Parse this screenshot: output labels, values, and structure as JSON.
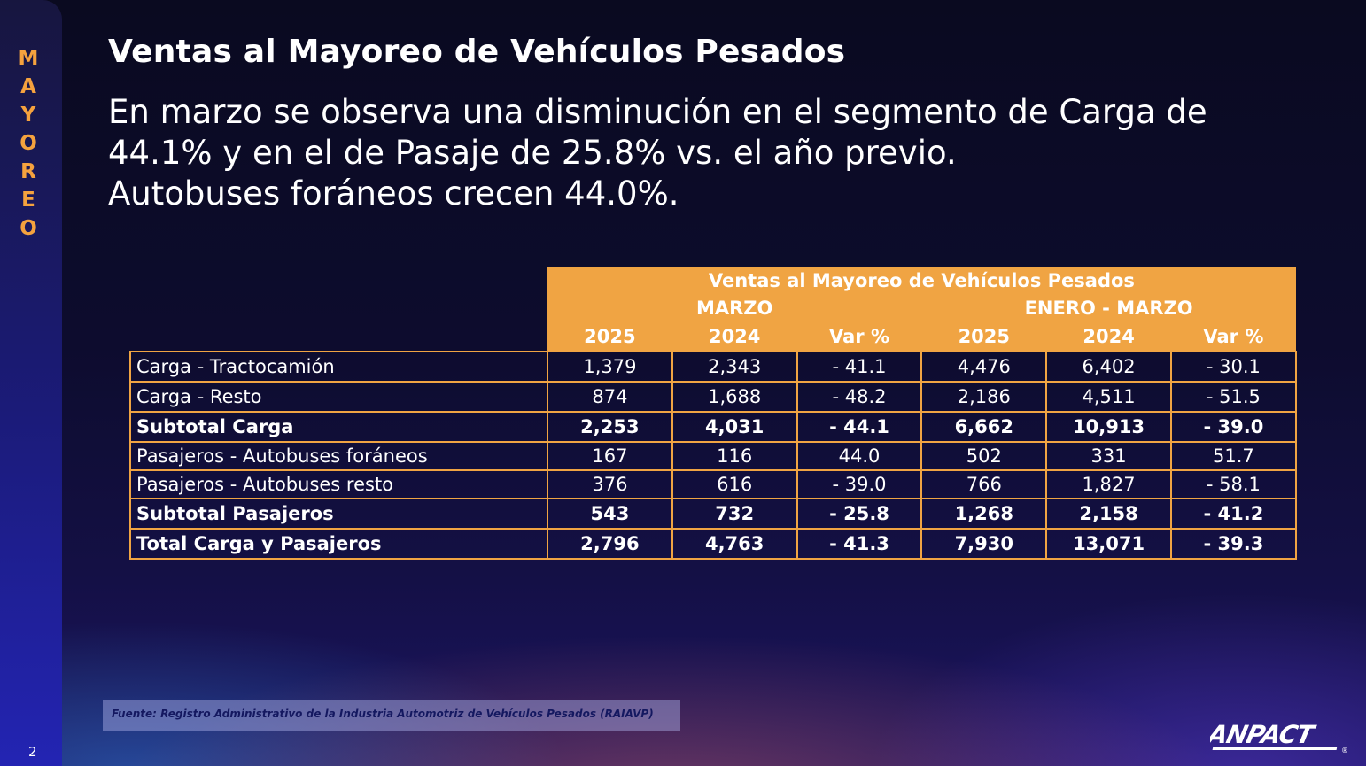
{
  "sidebar": {
    "letters": [
      "M",
      "A",
      "Y",
      "O",
      "R",
      "E",
      "O"
    ]
  },
  "title": "Ventas al Mayoreo de Vehículos Pesados",
  "subtitle": {
    "line1": "En marzo se observa una disminución en el segmento de Carga de",
    "line2": "44.1% y en el de Pasaje de 25.8% vs. el año previo.",
    "line3": "Autobuses foráneos crecen 44.0%."
  },
  "table": {
    "header": "Ventas al Mayoreo de Vehículos Pesados",
    "group_march": "MARZO",
    "group_ytd": "ENERO - MARZO",
    "columns": [
      "2025",
      "2024",
      "Var %",
      "2025",
      "2024",
      "Var %"
    ],
    "rows": [
      {
        "label": "Carga - Tractocamión",
        "values": [
          "1,379",
          "2,343",
          "- 41.1",
          "4,476",
          "6,402",
          "- 30.1"
        ]
      },
      {
        "label": "Carga - Resto",
        "values": [
          "874",
          "1,688",
          "- 48.2",
          "2,186",
          "4,511",
          "- 51.5"
        ]
      },
      {
        "label": "Subtotal Carga",
        "values": [
          "2,253",
          "4,031",
          "- 44.1",
          "6,662",
          "10,913",
          "- 39.0"
        ]
      },
      {
        "label": "Pasajeros - Autobuses foráneos",
        "values": [
          "167",
          "116",
          "44.0",
          "502",
          "331",
          "51.7"
        ]
      },
      {
        "label": "Pasajeros - Autobuses resto",
        "values": [
          "376",
          "616",
          "- 39.0",
          "766",
          "1,827",
          "- 58.1"
        ]
      },
      {
        "label": "Subtotal Pasajeros",
        "values": [
          "543",
          "732",
          "- 25.8",
          "1,268",
          "2,158",
          "- 41.2"
        ]
      },
      {
        "label": "Total Carga y Pasajeros",
        "values": [
          "2,796",
          "4,763",
          "- 41.3",
          "7,930",
          "13,071",
          "- 39.3"
        ]
      }
    ]
  },
  "source": "Fuente: Registro Administrativo de la Industria Automotriz de Vehículos Pesados (RAIAVP)",
  "page_number": "2",
  "logo": {
    "text": "ANPACT",
    "mark": "®"
  },
  "colors": {
    "accent": "#f0a443",
    "background": "#0d0c2e",
    "sidebar": "#1b1b7a"
  }
}
